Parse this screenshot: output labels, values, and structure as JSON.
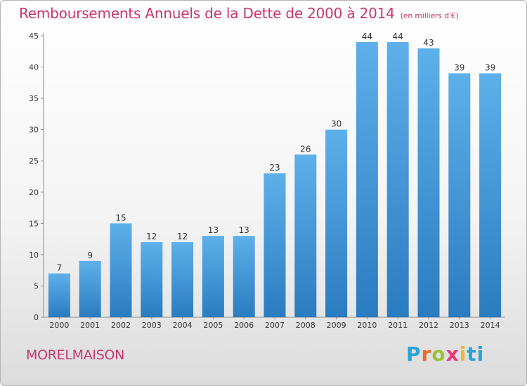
{
  "header": {
    "title": "Remboursements Annuels de la Dette de 2000 à 2014",
    "unit": "(en milliers d'€)"
  },
  "footer": {
    "commune": "MORELMAISON",
    "logo_letters": [
      "P",
      "r",
      "o",
      "x",
      "i",
      "t",
      "i"
    ]
  },
  "colors": {
    "title": "#c8366d",
    "bar_top": "#5eb0ea",
    "bar_bottom": "#2a7cc0"
  },
  "chart_data": {
    "type": "bar",
    "title": "Remboursements Annuels de la Dette de 2000 à 2014",
    "xlabel": "",
    "ylabel": "",
    "categories": [
      "2000",
      "2001",
      "2002",
      "2003",
      "2004",
      "2005",
      "2006",
      "2007",
      "2008",
      "2009",
      "2010",
      "2011",
      "2012",
      "2013",
      "2014"
    ],
    "values": [
      7,
      9,
      15,
      12,
      12,
      13,
      13,
      23,
      26,
      30,
      44,
      44,
      43,
      39,
      39
    ],
    "ylim": [
      0,
      45
    ],
    "yticks": [
      0,
      5,
      10,
      15,
      20,
      25,
      30,
      35,
      40,
      45
    ],
    "grid": false,
    "data_labels": true
  }
}
